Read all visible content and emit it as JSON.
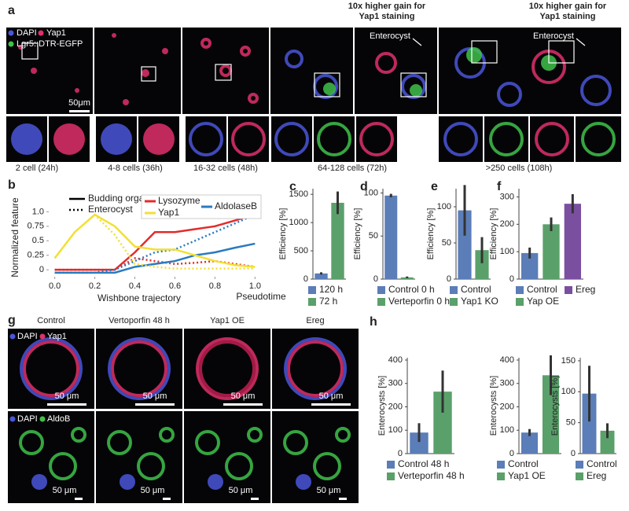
{
  "panel_letters": [
    "a",
    "b",
    "c",
    "d",
    "e",
    "f",
    "g",
    "h"
  ],
  "panel_a": {
    "legend": [
      "DAPI",
      "Yap1",
      "Lgr5::DTR-EGFP"
    ],
    "scale_bar": "50μm",
    "gain_notes": [
      "10x higher gain for Yap1 staining",
      "10x higher gain for Yap1 staining"
    ],
    "arrows": [
      "Enterocyst",
      "Enterocyst"
    ],
    "stages": [
      "2 cell (24h)",
      "4-8 cells (36h)",
      "16-32 cells (48h)",
      "64-128 cells (72h)",
      ">250 cells (108h)"
    ]
  },
  "panel_g": {
    "columns": [
      "Control",
      "Vertoporfin 48 h",
      "Yap1 OE",
      "Ereg"
    ],
    "row_labels": [
      [
        "DAPI",
        "Yap1"
      ],
      [
        "DAPI",
        "AldoB"
      ]
    ],
    "scale_bars": [
      "50 μm",
      "50 μm",
      "50 μm",
      "50 μm",
      "50 μm",
      "50 μm",
      "50 μm",
      "50 μm"
    ]
  },
  "chart_data": [
    {
      "type": "line",
      "y_label": "Normalized feature",
      "x_label": "Wishbone trajectory",
      "x_note": "Pseudotime",
      "styles": [
        "Budding organoid",
        "Enterocyst"
      ],
      "x": [
        0,
        0.1,
        0.2,
        0.3,
        0.4,
        0.5,
        0.6,
        0.7,
        0.8,
        0.9,
        1.0
      ],
      "series": [
        {
          "name": "Lysozyme",
          "color": "#e32b2b",
          "values": [
            0,
            0,
            0,
            0,
            0.3,
            0.65,
            0.65,
            0.7,
            0.75,
            0.85,
            0.95
          ],
          "enterocyst_values": [
            0,
            0,
            0,
            0,
            0.2,
            0.15,
            0.1,
            0.12,
            0.15,
            0.1,
            0.05
          ]
        },
        {
          "name": "AldolaseB",
          "color": "#2a7bc0",
          "values": [
            -0.05,
            -0.05,
            -0.05,
            -0.05,
            0.05,
            0.1,
            0.15,
            0.25,
            0.3,
            0.38,
            0.45
          ],
          "enterocyst_values": [
            -0.05,
            -0.05,
            -0.05,
            0,
            0.15,
            0.3,
            0.35,
            0.5,
            0.65,
            0.8,
            0.95
          ]
        },
        {
          "name": "Yap1",
          "color": "#f2e034",
          "values": [
            0.2,
            0.65,
            0.95,
            0.75,
            0.4,
            0.35,
            0.35,
            0.25,
            0.15,
            0.08,
            0.05
          ],
          "enterocyst_values": [
            0.2,
            0.65,
            0.95,
            0.6,
            0.1,
            0.05,
            0.02,
            0.02,
            0.02,
            0.02,
            0.02
          ]
        }
      ],
      "xlim": [
        -0.03,
        1.03
      ],
      "ylim": [
        -0.12,
        1.1
      ],
      "xticks": [
        {
          "value": 0,
          "label": "0.0"
        },
        0.2,
        0.4,
        0.6,
        0.8,
        {
          "value": 1,
          "label": "1.0"
        }
      ],
      "yticks": [
        0,
        0.25,
        0.5,
        0.75,
        {
          "value": 1,
          "label": "1.0"
        }
      ]
    },
    {
      "type": "bar",
      "y_label": "Efficiency [%]",
      "categories": [
        "120 h",
        "72 h"
      ],
      "colors": [
        "#5b7db8",
        "#5aa06a"
      ],
      "values": [
        100,
        1350
      ],
      "errors": [
        20,
        200
      ],
      "ylim": [
        0,
        1600
      ],
      "yticks": [
        0,
        500,
        1000,
        1500
      ]
    },
    {
      "type": "bar",
      "y_label": "Efficiency [%]",
      "categories": [
        "Control 0 h",
        "Verteporfin 0 h"
      ],
      "colors": [
        "#5b7db8",
        "#5aa06a"
      ],
      "values": [
        97,
        2
      ],
      "errors": [
        2,
        1
      ],
      "ylim": [
        0,
        105
      ],
      "yticks": [
        0,
        50,
        100
      ]
    },
    {
      "type": "bar",
      "y_label": "Efficiency [%]",
      "categories": [
        "Control",
        "Yap1 KO"
      ],
      "colors": [
        "#5b7db8",
        "#5aa06a"
      ],
      "values": [
        95,
        40
      ],
      "errors": [
        35,
        18
      ],
      "ylim": [
        0,
        125
      ],
      "yticks": [
        0,
        50,
        100
      ]
    },
    {
      "type": "bar",
      "y_label": "Efficiency [%]",
      "categories": [
        "Control",
        "Yap OE",
        "Ereg"
      ],
      "colors": [
        "#5b7db8",
        "#5aa06a",
        "#7a4fa0"
      ],
      "values": [
        95,
        200,
        275
      ],
      "errors": [
        20,
        25,
        35
      ],
      "ylim": [
        0,
        330
      ],
      "yticks": [
        0,
        100,
        200,
        300
      ]
    },
    {
      "type": "bar",
      "y_label": "Enterocysts [%]",
      "categories": [
        "Control 48 h",
        "Verteporfin 48 h"
      ],
      "colors": [
        "#5b7db8",
        "#5aa06a"
      ],
      "values": [
        90,
        265
      ],
      "errors": [
        40,
        90
      ],
      "ylim": [
        0,
        410
      ],
      "yticks": [
        0,
        100,
        200,
        300,
        400
      ]
    },
    {
      "type": "bar",
      "y_label": "Enterocysts [%]",
      "categories": [
        "Control",
        "Yap1 OE"
      ],
      "colors": [
        "#5b7db8",
        "#5aa06a"
      ],
      "values": [
        90,
        335
      ],
      "errors": [
        15,
        85
      ],
      "ylim": [
        0,
        410
      ],
      "yticks": [
        0,
        100,
        200,
        300,
        400
      ]
    },
    {
      "type": "bar",
      "y_label": "Enterocysts [%]",
      "categories": [
        "Control",
        "Ereg"
      ],
      "colors": [
        "#5b7db8",
        "#5aa06a"
      ],
      "values": [
        97,
        37
      ],
      "errors": [
        45,
        12
      ],
      "ylim": [
        0,
        155
      ],
      "yticks": [
        0,
        50,
        100,
        150
      ]
    }
  ]
}
